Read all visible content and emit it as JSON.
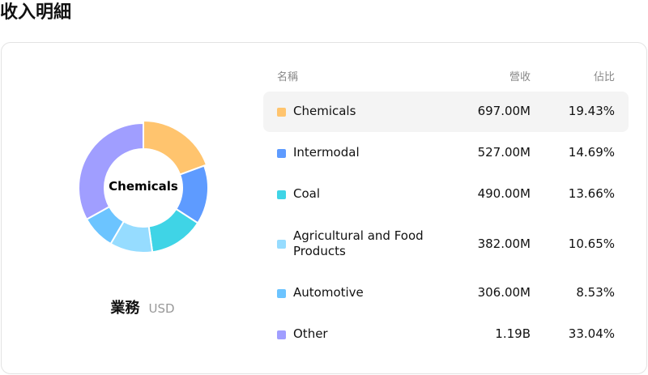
{
  "title": "收入明細",
  "segment": {
    "name": "業務",
    "currency": "USD"
  },
  "center_label": "Chemicals",
  "table": {
    "headers": {
      "name": "名稱",
      "revenue": "營收",
      "share": "佔比"
    },
    "selected_index": 0,
    "rows": [
      {
        "name": "Chemicals",
        "revenue": "697.00M",
        "share": "19.43%",
        "color": "#FFC46E"
      },
      {
        "name": "Intermodal",
        "revenue": "527.00M",
        "share": "14.69%",
        "color": "#5E9BFF"
      },
      {
        "name": "Coal",
        "revenue": "490.00M",
        "share": "13.66%",
        "color": "#3FD4E6"
      },
      {
        "name": "Agricultural and Food Products",
        "revenue": "382.00M",
        "share": "10.65%",
        "color": "#96DCFF"
      },
      {
        "name": "Automotive",
        "revenue": "306.00M",
        "share": "8.53%",
        "color": "#6CC4FF"
      },
      {
        "name": "Other",
        "revenue": "1.19B",
        "share": "33.04%",
        "color": "#A09EFF"
      }
    ]
  },
  "chart_data": {
    "type": "pie",
    "categories": [
      "Chemicals",
      "Intermodal",
      "Coal",
      "Agricultural and Food Products",
      "Automotive",
      "Other"
    ],
    "values": [
      19.43,
      14.69,
      13.66,
      10.65,
      8.53,
      33.04
    ],
    "colors": [
      "#FFC46E",
      "#5E9BFF",
      "#3FD4E6",
      "#96DCFF",
      "#6CC4FF",
      "#A09EFF"
    ],
    "donut": true,
    "highlighted": "Chemicals"
  }
}
